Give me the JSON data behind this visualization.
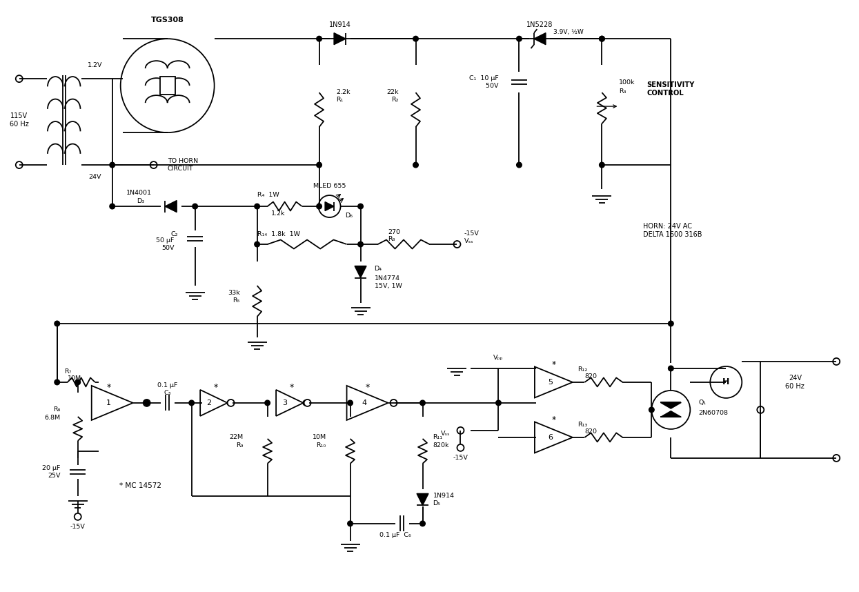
{
  "bg": "#ffffff",
  "fg": "#000000",
  "lw": 1.3,
  "figsize": [
    12.45,
    8.58
  ],
  "dpi": 100,
  "labels": {
    "sensor": "TGS308",
    "v115": "115V\n60 Hz",
    "v12": "1.2V",
    "v24": "24V",
    "to_horn": "TO HORN\nCIRCUIT",
    "d1": "1N914",
    "d2": "1N5228",
    "d2v": "3.9V, ½W",
    "R1": "2.2k\nR₁",
    "R2": "22k\nR₂",
    "C1": "C₁  10 μF\n      50V",
    "R3a": "100k",
    "R3b": "R₃",
    "sens": "SENSITIVITY\nCONTROL",
    "D3a": "1N4001",
    "D3b": "D₃",
    "C2a": "C₂",
    "C2b": "50 μF\n50V",
    "R4a": "R₄  1W",
    "R4b": "1.2k",
    "MLED": "MLED 655",
    "D6": "D₆",
    "R14": "R₁₄  1.8k  1W",
    "R5a": "33k",
    "R5b": "R₅",
    "D4": "D₄",
    "D4b": "1N4774\n15V, 1W",
    "R8a": "270",
    "R8b": "R₈",
    "vss": "-15V\nVₛₛ",
    "horn_lbl": "HORN: 24V AC\nDELTA 1600 316B",
    "R7a": "R₇",
    "R7b": "10M",
    "R8Ra": "R₈",
    "R8Rb": "6.8M",
    "C3": "0.1 μF\nC₃",
    "a1": "1",
    "a2": "2",
    "a3": "3",
    "a4": "4",
    "a5": "5",
    "a6": "6",
    "R9a": "22M",
    "R9b": "R₉",
    "R10a": "10M",
    "R10b": "R₁₀",
    "R11a": "R₁₁",
    "R11b": "820k",
    "D5": "1N914\nD₅",
    "C6": "0.1 μF  C₆",
    "R12a": "R₁₂",
    "R12b": "820",
    "R13a": "R₁₃",
    "R13b": "820",
    "H": "H",
    "Q1a": "Q₁",
    "Q1b": "2N60708",
    "ac": "24V\n60 Hz",
    "mc": "* MC 14572",
    "C4": "20 μF\n25V",
    "neg15": "-15V",
    "vdd": "Vₚₚ",
    "vss2": "Vₛₛ",
    "neg15b": "-15V"
  }
}
